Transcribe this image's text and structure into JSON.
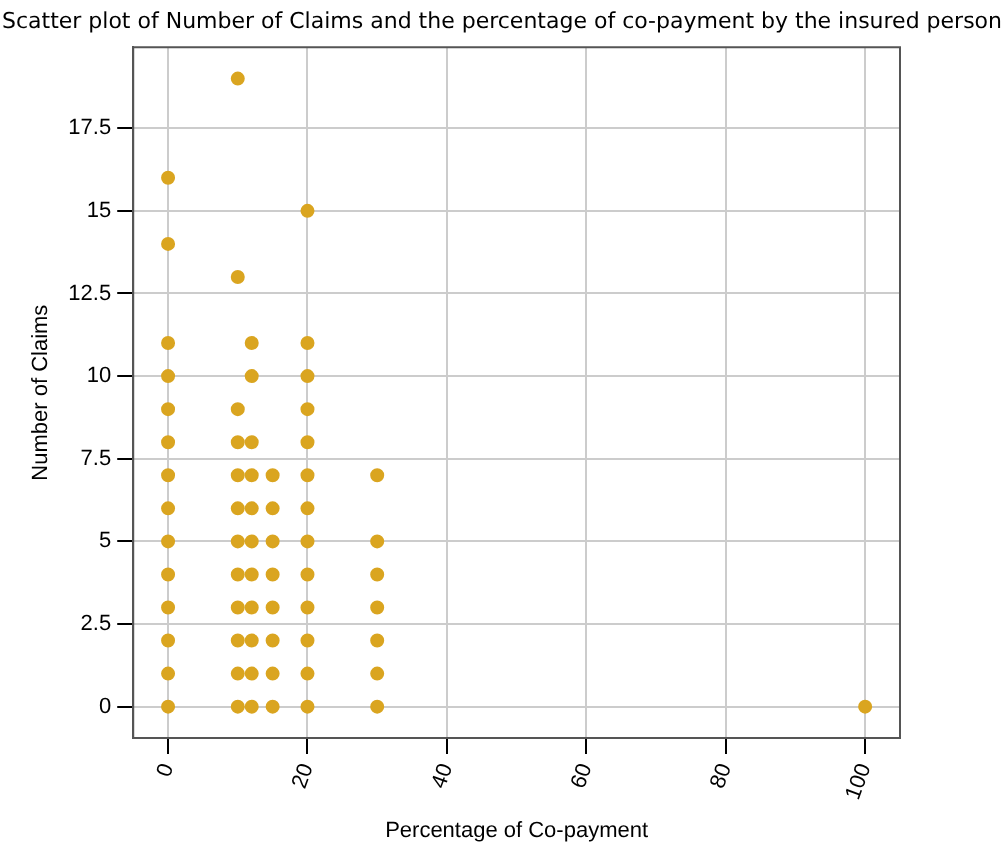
{
  "chart_data": {
    "type": "scatter",
    "title": "Scatter plot of Number of Claims and the percentage of co-payment  by the insured person",
    "xlabel": "Percentage of Co-payment",
    "ylabel": "Number of Claims",
    "x": [
      0,
      0,
      0,
      0,
      0,
      0,
      0,
      0,
      0,
      0,
      0,
      0,
      0,
      0,
      10,
      10,
      10,
      10,
      10,
      10,
      10,
      10,
      10,
      10,
      10,
      10,
      12,
      12,
      12,
      12,
      12,
      12,
      12,
      12,
      12,
      12,
      12,
      15,
      15,
      15,
      15,
      15,
      15,
      15,
      15,
      20,
      20,
      20,
      20,
      20,
      20,
      20,
      20,
      20,
      20,
      20,
      20,
      20,
      30,
      30,
      30,
      30,
      30,
      30,
      30,
      100
    ],
    "values": [
      0,
      1,
      2,
      3,
      4,
      5,
      6,
      7,
      8,
      9,
      10,
      11,
      14,
      16,
      0,
      1,
      2,
      3,
      4,
      5,
      6,
      7,
      8,
      9,
      13,
      19,
      0,
      1,
      2,
      3,
      4,
      5,
      6,
      7,
      8,
      10,
      11,
      0,
      1,
      2,
      3,
      4,
      5,
      6,
      7,
      0,
      1,
      2,
      3,
      4,
      5,
      6,
      7,
      8,
      9,
      10,
      11,
      15,
      0,
      1,
      2,
      3,
      4,
      5,
      7,
      0
    ],
    "color": "#daa520",
    "marker": "circle",
    "xlim": [
      -5,
      105
    ],
    "xticks": [
      0,
      20,
      40,
      60,
      80,
      100
    ],
    "ylim": [
      -0.95,
      19.95
    ],
    "yticks": [
      0,
      2.5,
      5,
      7.5,
      10,
      12.5,
      15,
      17.5
    ],
    "grid": true
  }
}
